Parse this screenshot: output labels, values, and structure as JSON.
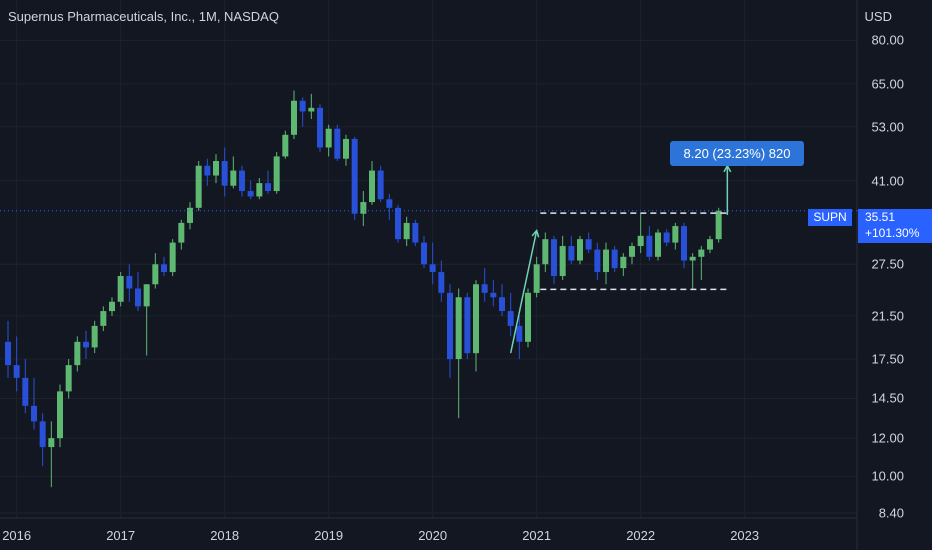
{
  "header": {
    "title": "Supernus Pharmaceuticals, Inc., 1M, NASDAQ"
  },
  "axis": {
    "unit": "USD"
  },
  "price_label": {
    "symbol": "SUPN",
    "price": "35.51",
    "change": "+101.30%"
  },
  "annotation": {
    "text": "8.20 (23.23%) 820"
  },
  "colors": {
    "background": "#131722",
    "up": "#5fb872",
    "down": "#2850d8",
    "grid": "#1e222d",
    "accent": "#2962ff",
    "arrow": "#6fd3b3"
  },
  "chart_data": {
    "type": "candlestick",
    "title": "Supernus Pharmaceuticals, Inc., 1M, NASDAQ",
    "y_scale": "log",
    "ylim": [
      8.2,
      97
    ],
    "y_ticks": [
      80.0,
      65.0,
      53.0,
      41.0,
      27.5,
      21.5,
      17.5,
      14.5,
      12.0,
      10.0,
      8.4
    ],
    "y_tick_labels": [
      "80.00",
      "65.00",
      "53.00",
      "41.00",
      "27.50",
      "21.50",
      "17.50",
      "14.50",
      "12.00",
      "10.00",
      "8.40"
    ],
    "x_tick_labels": [
      "2016",
      "2017",
      "2018",
      "2019",
      "2020",
      "2021",
      "2022",
      "2023"
    ],
    "x_range": [
      "2015-12",
      "2023-12"
    ],
    "last_price": 35.51,
    "resistance_level": 35.1,
    "support_level": 24.4,
    "measure_start": 18.0,
    "measure_end": 44.0,
    "candles": [
      [
        "2015-12",
        19.0,
        21.0,
        16.0,
        17.0
      ],
      [
        "2016-01",
        17.0,
        19.5,
        15.0,
        16.0
      ],
      [
        "2016-02",
        16.0,
        17.5,
        13.5,
        14.0
      ],
      [
        "2016-03",
        14.0,
        16.0,
        12.5,
        13.0
      ],
      [
        "2016-04",
        13.0,
        13.5,
        10.5,
        11.5
      ],
      [
        "2016-05",
        11.5,
        13.0,
        9.5,
        12.0
      ],
      [
        "2016-06",
        12.0,
        15.5,
        11.5,
        15.0
      ],
      [
        "2016-07",
        15.0,
        17.5,
        14.5,
        17.0
      ],
      [
        "2016-08",
        17.0,
        19.5,
        16.5,
        19.0
      ],
      [
        "2016-09",
        19.0,
        20.0,
        17.5,
        18.5
      ],
      [
        "2016-10",
        18.5,
        21.0,
        18.0,
        20.5
      ],
      [
        "2016-11",
        20.5,
        22.5,
        20.0,
        22.0
      ],
      [
        "2016-12",
        22.0,
        23.5,
        21.5,
        23.0
      ],
      [
        "2017-01",
        23.0,
        26.5,
        22.5,
        26.0
      ],
      [
        "2017-02",
        26.0,
        27.5,
        23.0,
        24.5
      ],
      [
        "2017-03",
        24.5,
        26.5,
        22.0,
        22.5
      ],
      [
        "2017-04",
        22.5,
        25.0,
        17.8,
        25.0
      ],
      [
        "2017-05",
        25.0,
        29.0,
        24.5,
        27.5
      ],
      [
        "2017-06",
        27.5,
        28.5,
        26.0,
        26.5
      ],
      [
        "2017-07",
        26.5,
        31.0,
        26.0,
        30.5
      ],
      [
        "2017-08",
        30.5,
        34.0,
        29.5,
        33.5
      ],
      [
        "2017-09",
        33.5,
        37.0,
        32.5,
        36.0
      ],
      [
        "2017-10",
        36.0,
        45.0,
        35.5,
        44.0
      ],
      [
        "2017-11",
        44.0,
        45.5,
        40.0,
        42.0
      ],
      [
        "2017-12",
        42.0,
        46.5,
        40.5,
        45.0
      ],
      [
        "2018-01",
        45.0,
        48.0,
        38.0,
        40.0
      ],
      [
        "2018-02",
        40.0,
        46.0,
        39.5,
        43.0
      ],
      [
        "2018-03",
        43.0,
        44.0,
        38.0,
        39.0
      ],
      [
        "2018-04",
        39.0,
        41.0,
        37.5,
        38.0
      ],
      [
        "2018-05",
        38.0,
        41.5,
        37.5,
        40.5
      ],
      [
        "2018-06",
        40.5,
        43.0,
        38.5,
        39.0
      ],
      [
        "2018-07",
        39.0,
        47.0,
        38.5,
        46.0
      ],
      [
        "2018-08",
        46.0,
        52.0,
        45.5,
        51.0
      ],
      [
        "2018-09",
        51.0,
        63.0,
        50.0,
        60.0
      ],
      [
        "2018-10",
        60.0,
        61.0,
        53.0,
        57.0
      ],
      [
        "2018-11",
        57.0,
        62.0,
        55.0,
        58.0
      ],
      [
        "2018-12",
        58.0,
        59.0,
        47.0,
        48.0
      ],
      [
        "2019-01",
        48.0,
        53.5,
        46.0,
        52.5
      ],
      [
        "2019-02",
        52.5,
        53.5,
        45.0,
        45.5
      ],
      [
        "2019-03",
        45.5,
        51.0,
        44.0,
        50.0
      ],
      [
        "2019-04",
        50.0,
        50.5,
        34.0,
        35.0
      ],
      [
        "2019-05",
        35.0,
        39.0,
        33.0,
        37.0
      ],
      [
        "2019-06",
        37.0,
        45.0,
        36.5,
        43.0
      ],
      [
        "2019-07",
        43.0,
        44.0,
        37.0,
        37.5
      ],
      [
        "2019-08",
        37.5,
        38.5,
        34.0,
        36.0
      ],
      [
        "2019-09",
        36.0,
        36.5,
        30.5,
        31.0
      ],
      [
        "2019-10",
        31.0,
        34.5,
        30.0,
        33.5
      ],
      [
        "2019-11",
        33.5,
        34.0,
        30.0,
        30.5
      ],
      [
        "2019-12",
        30.5,
        31.5,
        27.0,
        27.5
      ],
      [
        "2020-01",
        27.5,
        30.5,
        25.0,
        26.5
      ],
      [
        "2020-02",
        26.5,
        28.0,
        23.0,
        24.0
      ],
      [
        "2020-03",
        24.0,
        25.0,
        16.0,
        17.5
      ],
      [
        "2020-04",
        17.5,
        24.5,
        13.2,
        23.5
      ],
      [
        "2020-05",
        23.5,
        24.0,
        17.5,
        18.0
      ],
      [
        "2020-06",
        18.0,
        25.5,
        16.5,
        25.0
      ],
      [
        "2020-07",
        25.0,
        27.0,
        23.0,
        24.0
      ],
      [
        "2020-08",
        24.0,
        25.5,
        22.5,
        23.5
      ],
      [
        "2020-09",
        23.5,
        25.0,
        21.5,
        22.0
      ],
      [
        "2020-10",
        22.0,
        24.0,
        19.5,
        20.5
      ],
      [
        "2020-11",
        20.5,
        21.5,
        17.5,
        19.0
      ],
      [
        "2020-12",
        19.0,
        24.5,
        18.5,
        24.0
      ],
      [
        "2021-01",
        24.0,
        28.5,
        23.5,
        27.5
      ],
      [
        "2021-02",
        27.5,
        32.0,
        26.5,
        31.0
      ],
      [
        "2021-03",
        31.0,
        31.5,
        25.0,
        26.0
      ],
      [
        "2021-04",
        26.0,
        31.5,
        25.5,
        30.0
      ],
      [
        "2021-05",
        30.0,
        31.5,
        27.5,
        28.0
      ],
      [
        "2021-06",
        28.0,
        31.5,
        27.5,
        31.0
      ],
      [
        "2021-07",
        31.0,
        32.0,
        29.0,
        29.5
      ],
      [
        "2021-08",
        29.5,
        30.5,
        25.5,
        26.5
      ],
      [
        "2021-09",
        26.5,
        30.5,
        25.0,
        29.5
      ],
      [
        "2021-10",
        29.5,
        30.0,
        26.5,
        27.0
      ],
      [
        "2021-11",
        27.0,
        29.0,
        26.0,
        28.5
      ],
      [
        "2021-12",
        28.5,
        30.5,
        27.5,
        30.0
      ],
      [
        "2022-01",
        30.0,
        35.0,
        29.0,
        31.5
      ],
      [
        "2022-02",
        31.5,
        33.0,
        28.0,
        28.5
      ],
      [
        "2022-03",
        28.5,
        32.5,
        28.0,
        32.0
      ],
      [
        "2022-04",
        32.0,
        32.5,
        30.0,
        30.5
      ],
      [
        "2022-05",
        30.5,
        33.5,
        29.5,
        33.0
      ],
      [
        "2022-06",
        33.0,
        33.5,
        27.0,
        28.0
      ],
      [
        "2022-07",
        28.0,
        29.0,
        24.5,
        28.5
      ],
      [
        "2022-08",
        28.5,
        30.0,
        25.5,
        29.5
      ],
      [
        "2022-09",
        29.5,
        31.5,
        29.0,
        31.0
      ],
      [
        "2022-10",
        31.0,
        36.0,
        30.5,
        35.5
      ]
    ]
  }
}
